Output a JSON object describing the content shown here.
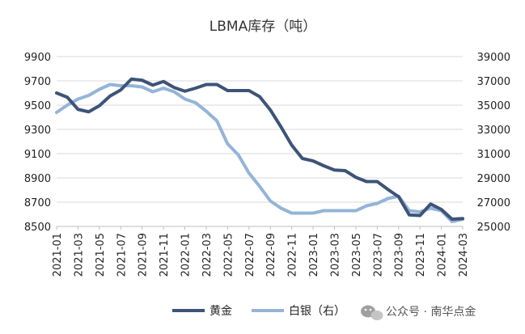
{
  "chart_data": {
    "type": "line",
    "title": "LBMA库存（吨）",
    "categories": [
      "2021-01",
      "2021-02",
      "2021-03",
      "2021-04",
      "2021-05",
      "2021-06",
      "2021-07",
      "2021-08",
      "2021-09",
      "2021-10",
      "2021-11",
      "2021-12",
      "2022-01",
      "2022-02",
      "2022-03",
      "2022-04",
      "2022-05",
      "2022-06",
      "2022-07",
      "2022-08",
      "2022-09",
      "2022-10",
      "2022-11",
      "2022-12",
      "2023-01",
      "2023-02",
      "2023-03",
      "2023-04",
      "2023-05",
      "2023-06",
      "2023-07",
      "2023-08",
      "2023-09",
      "2023-10",
      "2023-11",
      "2023-12",
      "2024-01",
      "2024-02",
      "2024-03"
    ],
    "x_tick_labels": [
      "2021-01",
      "2021-03",
      "2021-05",
      "2021-07",
      "2021-09",
      "2021-11",
      "2022-01",
      "2022-03",
      "2022-05",
      "2022-07",
      "2022-09",
      "2022-11",
      "2023-01",
      "2023-03",
      "2023-05",
      "2023-07",
      "2023-09",
      "2023-11",
      "2024-01",
      "2024-03"
    ],
    "y_left": {
      "min": 8500,
      "max": 9900,
      "ticks": [
        "8500",
        "8700",
        "8900",
        "9100",
        "9300",
        "9500",
        "9700",
        "9900"
      ]
    },
    "y_right": {
      "min": 25000,
      "max": 39000,
      "ticks": [
        "25000",
        "27000",
        "29000",
        "31000",
        "33000",
        "35000",
        "37000",
        "39000"
      ]
    },
    "series": [
      {
        "name": "黄金",
        "axis": "left",
        "color": "#3d5478",
        "values": [
          9600,
          9565,
          9465,
          9445,
          9495,
          9575,
          9625,
          9715,
          9705,
          9665,
          9695,
          9645,
          9615,
          9640,
          9670,
          9670,
          9620,
          9620,
          9620,
          9570,
          9460,
          9320,
          9170,
          9060,
          9040,
          9000,
          8965,
          8960,
          8905,
          8870,
          8870,
          8805,
          8745,
          8595,
          8590,
          8685,
          8640,
          8560,
          8565
        ]
      },
      {
        "name": "白银（右）",
        "axis": "right",
        "color": "#94b4d8",
        "values": [
          34400,
          35000,
          35500,
          35800,
          36300,
          36700,
          36600,
          36600,
          36500,
          36100,
          36400,
          36100,
          35500,
          35200,
          34500,
          33700,
          31800,
          30900,
          29400,
          28300,
          27100,
          26500,
          26100,
          26100,
          26100,
          26300,
          26300,
          26300,
          26300,
          26700,
          26900,
          27300,
          27500,
          26300,
          26200,
          26500,
          26300,
          25400,
          25600
        ]
      }
    ],
    "grid": true,
    "legend_position": "bottom"
  },
  "watermark": {
    "text": "公众号 · 南华点金",
    "icon": "wechat-icon"
  }
}
